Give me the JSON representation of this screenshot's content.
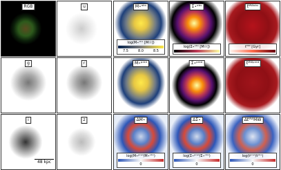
{
  "left_panels": [
    "RGB",
    "u",
    "g",
    "r",
    "i",
    "z"
  ],
  "scale_bar": "48 kpc",
  "map_panels": [
    [
      "M⋆ᵒᵇˢ",
      "Σ⋆ᵒᵇˢ",
      "tᴹᵂᵒᵇˢ"
    ],
    [
      "M⋆ᵖʳᵉᵈ",
      "Σ⋆ᵖʳᵉᵈ",
      "tᴹᵂᵖʳᵉᵈ"
    ],
    [
      "ΔM⋆",
      "ΔΣ⋆",
      "ΔtᴹᵂMW"
    ]
  ],
  "colorbars_top": [
    {
      "label": "log(M⋆ᵒᵇˢ [M☉])",
      "ticks": [
        "7.5",
        "8.0",
        "8.5"
      ]
    },
    {
      "label": "log(Σ⋆ᵒᵇˢ [M☉])",
      "ticks": []
    },
    {
      "label": "tᴹᵂ [Gyr]",
      "ticks": []
    }
  ],
  "colorbars_bottom": [
    {
      "label": "log(M⋆ᵖʳᵉᵈ/M⋆ᵒᵇˢ)",
      "ticks": [
        "0"
      ]
    },
    {
      "label": "log(Σ⋆ᵖʳᵉᵈ/Σ⋆ᵒᵇˢ)",
      "ticks": [
        "0"
      ]
    },
    {
      "label": "log(tᵖʳᵉᵈ/tᵒᵇˢ)",
      "ticks": [
        "0"
      ]
    }
  ]
}
